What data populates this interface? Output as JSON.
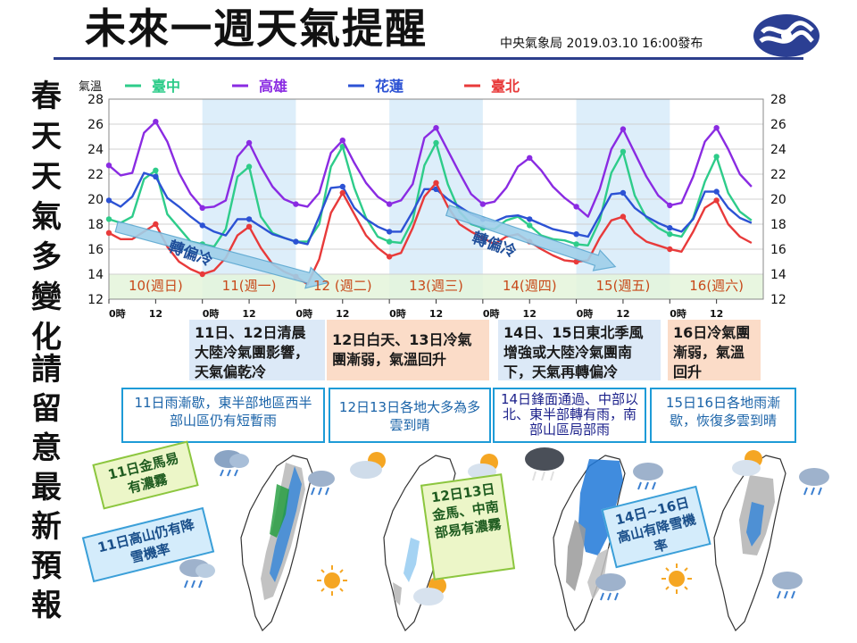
{
  "header": {
    "title": "未來一週天氣提醒",
    "issuer": "中央氣象局 2019.03.10 16:00發布"
  },
  "sidebar": {
    "line1": [
      "春",
      "天",
      "天",
      "氣",
      "多",
      "變",
      "化"
    ],
    "line2": [
      "請",
      "留",
      "意",
      "最",
      "新",
      "預",
      "報"
    ]
  },
  "chart_data": {
    "type": "line",
    "ylabel": "氣溫",
    "ylim": [
      12,
      28
    ],
    "yticks": [
      12,
      14,
      16,
      18,
      20,
      22,
      24,
      26,
      28
    ],
    "x_hours": [
      0,
      3,
      6,
      9,
      12,
      15,
      18,
      21,
      24,
      27,
      30,
      33,
      36,
      39,
      42,
      45,
      48,
      51,
      54,
      57,
      60,
      63,
      66,
      69,
      72,
      75,
      78,
      81,
      84,
      87,
      90,
      93,
      96,
      99,
      102,
      105,
      108,
      111,
      114,
      117,
      120,
      123,
      126,
      129,
      132,
      135,
      138,
      141,
      144,
      147,
      150,
      153,
      156,
      159,
      162,
      165
    ],
    "x_tick_labels": [
      {
        "hour": 0,
        "label": "0時"
      },
      {
        "hour": 12,
        "label": "12"
      },
      {
        "hour": 24,
        "label": "0時"
      },
      {
        "hour": 36,
        "label": "12"
      },
      {
        "hour": 48,
        "label": "0時"
      },
      {
        "hour": 60,
        "label": "12"
      },
      {
        "hour": 72,
        "label": "0時"
      },
      {
        "hour": 84,
        "label": "12"
      },
      {
        "hour": 96,
        "label": "0時"
      },
      {
        "hour": 108,
        "label": "12"
      },
      {
        "hour": 120,
        "label": "0時"
      },
      {
        "hour": 132,
        "label": "12"
      },
      {
        "hour": 144,
        "label": "0時"
      },
      {
        "hour": 156,
        "label": "12"
      }
    ],
    "days": [
      "10(週日)",
      "11(週一)",
      "12 (週二)",
      "13(週三)",
      "14(週四)",
      "15(週五)",
      "16(週六)"
    ],
    "legend": "top",
    "series": [
      {
        "name": "臺中",
        "color": "#2ecc8a",
        "values": [
          18.4,
          18.1,
          18.6,
          21.6,
          22.3,
          18.8,
          17.7,
          16.6,
          16.4,
          16.2,
          17.6,
          21.8,
          22.6,
          18.6,
          17.3,
          16.9,
          16.6,
          16.6,
          18.0,
          22.6,
          24.2,
          20.9,
          18.5,
          17.0,
          16.6,
          16.5,
          18.3,
          22.7,
          24.5,
          21.2,
          19.0,
          18.0,
          17.7,
          17.6,
          18.3,
          18.6,
          17.9,
          17.1,
          16.8,
          16.7,
          16.4,
          16.3,
          18.3,
          22.1,
          23.8,
          20.3,
          18.5,
          17.7,
          17.2,
          17.0,
          18.5,
          21.4,
          23.4,
          20.5,
          19.0,
          18.3
        ]
      },
      {
        "name": "高雄",
        "color": "#8a2be2",
        "values": [
          22.7,
          21.9,
          22.1,
          25.3,
          26.2,
          24.6,
          22.1,
          20.4,
          19.3,
          19.4,
          19.9,
          23.4,
          24.5,
          22.6,
          21.0,
          20.0,
          19.6,
          19.4,
          20.5,
          23.7,
          24.7,
          22.9,
          21.3,
          20.2,
          19.6,
          19.9,
          21.2,
          24.9,
          25.7,
          23.9,
          22.1,
          20.4,
          19.6,
          19.8,
          20.9,
          22.6,
          23.3,
          22.3,
          21.0,
          20.1,
          19.4,
          18.6,
          20.8,
          24.0,
          25.6,
          23.7,
          21.8,
          20.3,
          19.5,
          19.7,
          21.8,
          24.6,
          25.7,
          24.0,
          22.0,
          21.0
        ]
      },
      {
        "name": "花蓮",
        "color": "#2c52d4",
        "values": [
          19.9,
          19.4,
          20.2,
          22.1,
          21.8,
          20.1,
          19.4,
          18.6,
          17.9,
          17.4,
          17.1,
          18.4,
          18.4,
          17.8,
          17.2,
          16.9,
          16.6,
          16.4,
          18.6,
          20.9,
          21.0,
          19.3,
          18.4,
          17.8,
          17.4,
          17.4,
          19.0,
          20.8,
          20.8,
          20.0,
          19.4,
          18.8,
          18.4,
          18.2,
          18.6,
          18.7,
          18.4,
          18.0,
          17.6,
          17.4,
          17.2,
          17.0,
          18.7,
          20.4,
          20.5,
          19.3,
          18.6,
          18.1,
          17.7,
          17.4,
          18.4,
          20.6,
          20.6,
          19.3,
          18.5,
          18.1
        ]
      },
      {
        "name": "臺北",
        "color": "#e83a3a",
        "values": [
          17.3,
          16.8,
          16.8,
          17.4,
          18.0,
          16.2,
          15.0,
          14.4,
          14.0,
          14.3,
          15.3,
          17.1,
          17.8,
          16.1,
          14.8,
          14.2,
          13.8,
          13.2,
          15.2,
          18.9,
          20.5,
          18.8,
          17.1,
          16.1,
          15.4,
          15.7,
          17.7,
          20.2,
          21.3,
          19.4,
          18.0,
          17.4,
          16.9,
          16.4,
          17.0,
          17.2,
          16.6,
          16.0,
          15.5,
          15.1,
          15.0,
          15.1,
          16.9,
          18.3,
          18.6,
          17.3,
          16.6,
          16.3,
          16.0,
          15.8,
          17.4,
          19.3,
          19.9,
          18.0,
          17.0,
          16.5
        ]
      }
    ],
    "annotations": [
      {
        "text": "轉偏冷"
      },
      {
        "text": "轉偏冷"
      }
    ]
  },
  "notes": {
    "n1": "11日、12日清晨大陸冷氣團影響，天氣偏乾冷",
    "n2": "12日白天、13日冷氣團漸弱，氣溫回升",
    "n3": "14日、15日東北季風增強或大陸冷氣團南下，天氣再轉偏冷",
    "n4": "16日冷氣團漸弱，氣溫回升"
  },
  "weather_notes": {
    "w1": "11日雨漸歇，東半部地區西半部山區仍有短暫雨",
    "w2": "12日13日各地大多為多雲到晴",
    "w3": "14日鋒面通過、中部以北、東半部轉有雨，南部山區局部雨",
    "w4": "15日16日各地雨漸歇，恢復多雲到晴"
  },
  "tags": {
    "t1": "11日金馬易有濃霧",
    "t2": "11日高山仍有降雪機率",
    "t3": "12日13日金馬、中南部易有濃霧",
    "t4": "14日~16日高山有降雪機率"
  },
  "colors": {
    "accent": "#2c3e8c",
    "chart_grid": "#d0d0d0",
    "day_band": "#ddeefa",
    "cold_band": "#e4f4da"
  }
}
